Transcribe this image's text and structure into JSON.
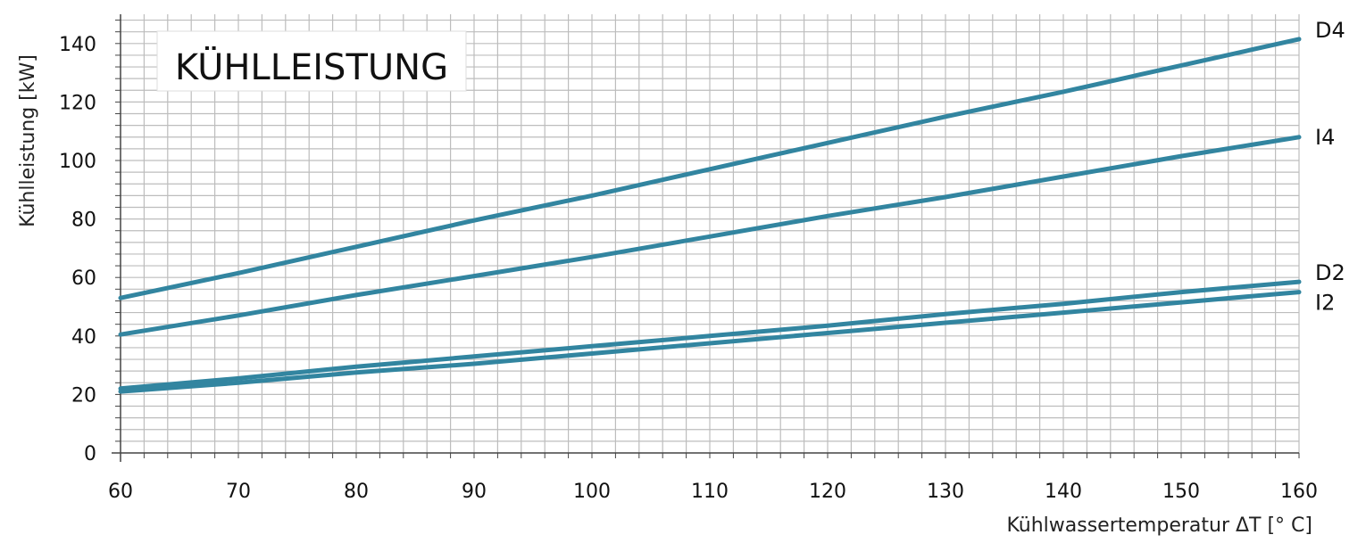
{
  "chart_data": {
    "type": "line",
    "title": "KÜHLLEISTUNG",
    "xlabel": "Kühlwassertemperatur ΔT [° C]",
    "ylabel": "Kühlleistung [kW]",
    "xlim": [
      60,
      160
    ],
    "ylim": [
      0,
      150
    ],
    "x_ticks": [
      60,
      70,
      80,
      90,
      100,
      110,
      120,
      130,
      140,
      150,
      160
    ],
    "y_ticks": [
      0,
      20,
      40,
      60,
      80,
      100,
      120,
      140
    ],
    "grid": true,
    "x": [
      60,
      70,
      80,
      90,
      100,
      110,
      120,
      130,
      140,
      150,
      160
    ],
    "series": [
      {
        "name": "D4",
        "values": [
          53,
          61.5,
          70.5,
          79.5,
          88,
          97,
          106,
          115,
          123.5,
          132.5,
          141.5
        ]
      },
      {
        "name": "I4",
        "values": [
          40.5,
          47,
          54,
          60.5,
          67,
          74,
          81,
          87.5,
          94.5,
          101.5,
          108
        ]
      },
      {
        "name": "D2",
        "values": [
          22,
          25.5,
          29.5,
          33,
          36.5,
          40,
          43.5,
          47.5,
          51,
          55,
          58.5
        ]
      },
      {
        "name": "I2",
        "values": [
          21,
          24,
          27.5,
          30.5,
          34,
          37.5,
          41,
          44.5,
          48,
          51.5,
          55
        ]
      }
    ],
    "colors": {
      "line": "#3285a0",
      "grid": "#bdbdbd",
      "axis": "#444444"
    }
  }
}
